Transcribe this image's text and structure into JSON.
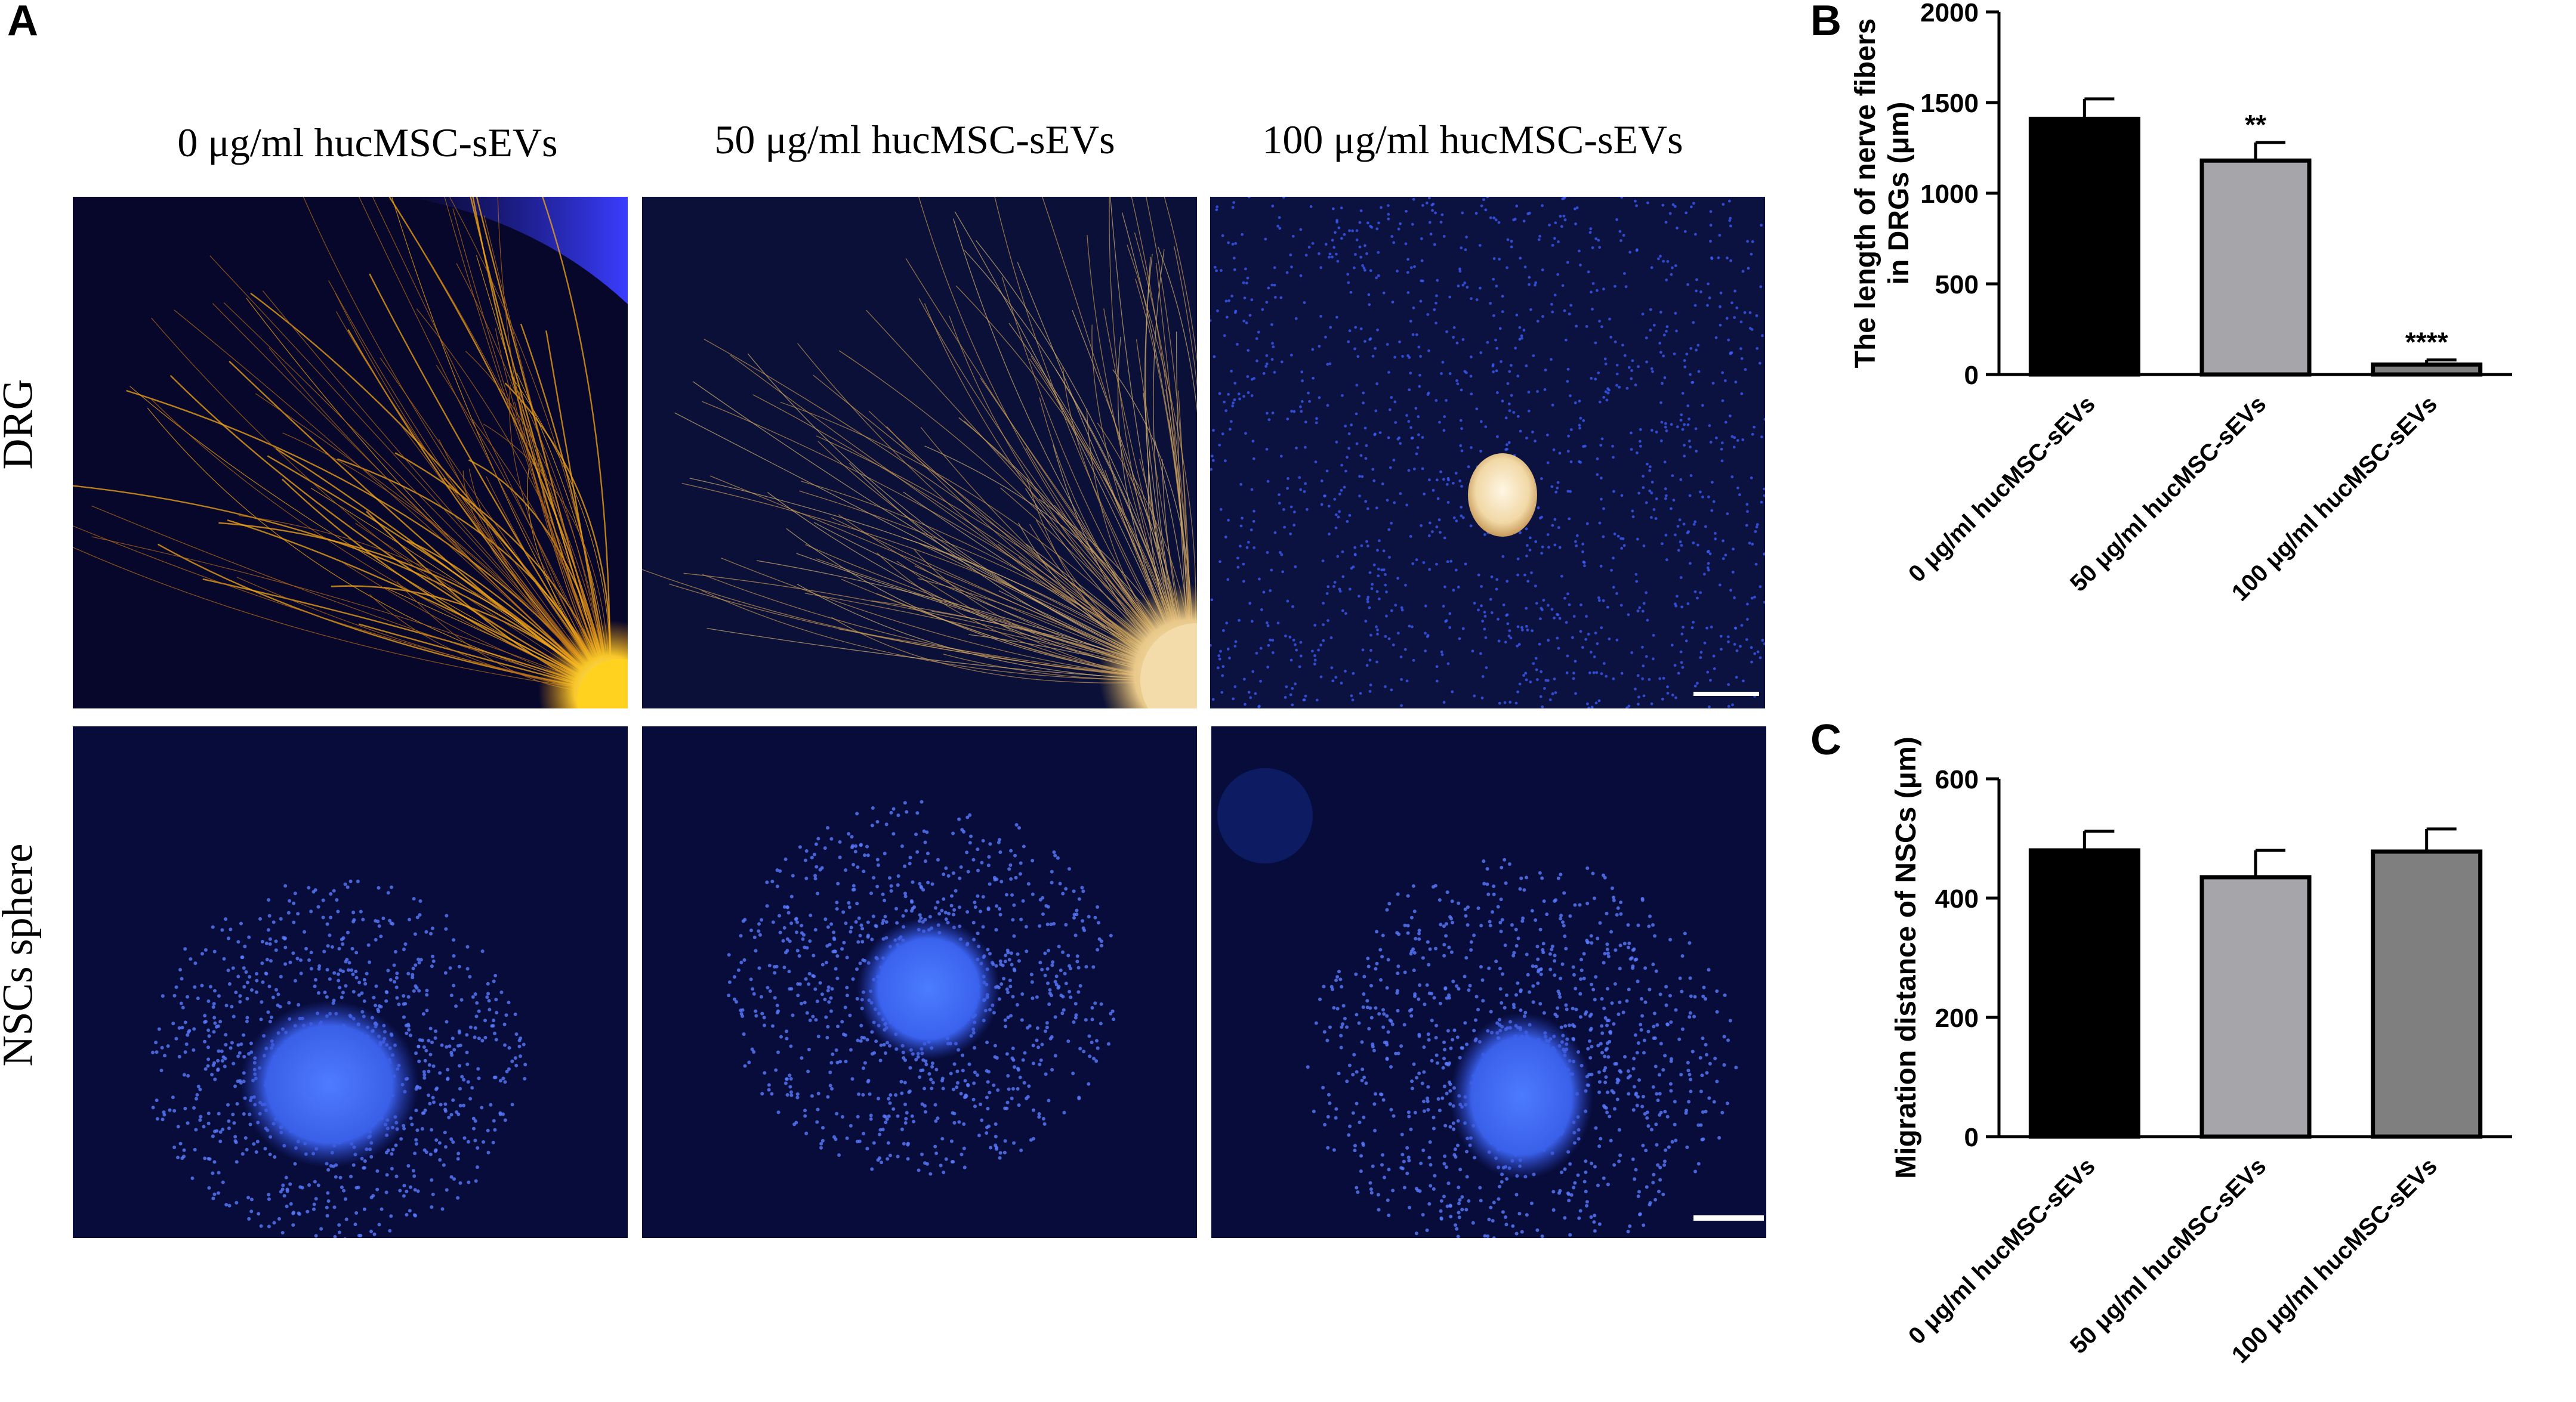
{
  "panel_labels": {
    "a": "A",
    "b": "B",
    "c": "C"
  },
  "micrographs": {
    "column_labels": [
      "0 μg/ml hucMSC-sEVs",
      "50 μg/ml hucMSC-sEVs",
      "100 μg/ml hucMSC-sEVs"
    ],
    "row_labels": [
      "DRG",
      "NSCs sphere"
    ]
  },
  "colors": {
    "bar_black": "#000000",
    "bar_light_gray": "#a6a6aa",
    "bar_dark_gray": "#808080",
    "micro_bg": "#06092e",
    "nuclei_blue": "#3a5cff",
    "fiber_gold": "#f2a51d"
  },
  "chart_data": [
    {
      "type": "bar",
      "panel": "B",
      "categories": [
        "0 μg/ml hucMSC-sEVs",
        "50 μg/ml hucMSC-sEVs",
        "100 μg/ml hucMSC-sEVs"
      ],
      "values": [
        1410,
        1180,
        55
      ],
      "errors": [
        110,
        100,
        25
      ],
      "annotations": [
        "",
        "**",
        "****"
      ],
      "ylabel": "The length of nerve fibers in DRGs (μm)",
      "ylabel_lines": [
        "The length of nerve fibers",
        "in DRGs (μm)"
      ],
      "ylim": [
        0,
        2000
      ],
      "yticks": [
        0,
        500,
        1000,
        1500,
        2000
      ],
      "bar_colors": [
        "#000000",
        "#a6a6aa",
        "#7f7f7f"
      ],
      "grid": false
    },
    {
      "type": "bar",
      "panel": "C",
      "categories": [
        "0 μg/ml hucMSC-sEVs",
        "50 μg/ml hucMSC-sEVs",
        "100 μg/ml hucMSC-sEVs"
      ],
      "values": [
        480,
        435,
        478
      ],
      "errors": [
        32,
        45,
        38
      ],
      "annotations": [
        "",
        "",
        ""
      ],
      "ylabel": "Migration distance of NSCs (μm)",
      "ylabel_lines": [
        "Migration distance of NSCs (μm)"
      ],
      "ylim": [
        0,
        600
      ],
      "yticks": [
        0,
        200,
        400,
        600
      ],
      "bar_colors": [
        "#000000",
        "#a6a6aa",
        "#7f7f7f"
      ],
      "grid": false
    }
  ]
}
